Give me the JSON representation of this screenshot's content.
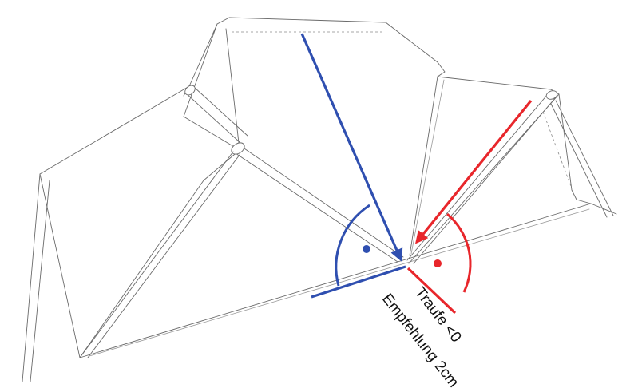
{
  "annotations": {
    "eave_label": "Traufe <0",
    "recommendation_label": "Empfehlung 2cm"
  },
  "colors": {
    "blue": "#2f4fb0",
    "red": "#e8262b",
    "outline": "#6a6a6a"
  }
}
